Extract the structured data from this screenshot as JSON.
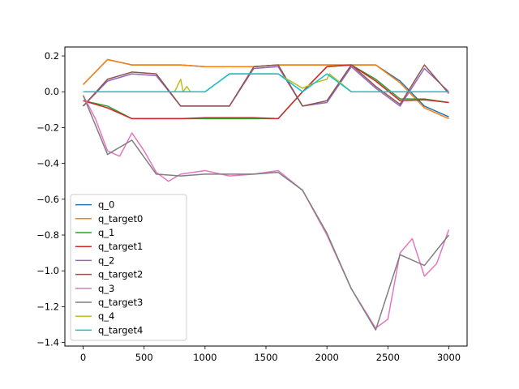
{
  "chart_data": {
    "type": "line",
    "title": "",
    "xlabel": "",
    "ylabel": "",
    "xlim": [
      -150,
      3150
    ],
    "ylim": [
      -1.42,
      0.25
    ],
    "grid": false,
    "legend_position": "lower-left",
    "x_ticks": [
      0,
      500,
      1000,
      1500,
      2000,
      2500,
      3000
    ],
    "x_tick_labels": [
      "0",
      "500",
      "1000",
      "1500",
      "2000",
      "2500",
      "3000"
    ],
    "y_ticks": [
      0.2,
      0.0,
      -0.2,
      -0.4,
      -0.6,
      -0.8,
      -1.0,
      -1.2,
      -1.4
    ],
    "y_tick_labels": [
      "0.2",
      "0.0",
      "−0.2",
      "−0.4",
      "−0.6",
      "−0.8",
      "−1.0",
      "−1.2",
      "−1.4"
    ],
    "series": [
      {
        "name": "q_0",
        "color": "#1f77b4",
        "x": [
          0,
          200,
          400,
          600,
          800,
          1000,
          1200,
          1400,
          1600,
          1800,
          2000,
          2200,
          2400,
          2600,
          2800,
          3000
        ],
        "y": [
          0.04,
          0.18,
          0.15,
          0.15,
          0.15,
          0.14,
          0.14,
          0.14,
          0.15,
          0.15,
          0.15,
          0.15,
          0.15,
          0.06,
          -0.08,
          -0.14
        ]
      },
      {
        "name": "q_target0",
        "color": "#ff7f0e",
        "x": [
          0,
          200,
          400,
          600,
          800,
          1000,
          1200,
          1400,
          1600,
          1800,
          2000,
          2200,
          2400,
          2600,
          2800,
          3000
        ],
        "y": [
          0.04,
          0.18,
          0.15,
          0.15,
          0.15,
          0.14,
          0.14,
          0.14,
          0.15,
          0.15,
          0.15,
          0.15,
          0.15,
          0.05,
          -0.09,
          -0.15
        ]
      },
      {
        "name": "q_1",
        "color": "#2ca02c",
        "x": [
          0,
          200,
          400,
          600,
          800,
          1000,
          1200,
          1400,
          1600,
          1800,
          2000,
          2200,
          2400,
          2600,
          2800,
          3000
        ],
        "y": [
          -0.05,
          -0.08,
          -0.15,
          -0.15,
          -0.15,
          -0.15,
          -0.15,
          -0.15,
          -0.15,
          0.0,
          0.14,
          0.15,
          0.07,
          -0.04,
          -0.04,
          -0.06
        ]
      },
      {
        "name": "q_target1",
        "color": "#d62728",
        "x": [
          0,
          200,
          400,
          600,
          800,
          1000,
          1200,
          1400,
          1600,
          1800,
          2000,
          2200,
          2400,
          2600,
          2800,
          3000
        ],
        "y": [
          -0.05,
          -0.09,
          -0.15,
          -0.15,
          -0.15,
          -0.145,
          -0.145,
          -0.145,
          -0.15,
          0.0,
          0.14,
          0.15,
          0.06,
          -0.05,
          -0.045,
          -0.06
        ]
      },
      {
        "name": "q_2",
        "color": "#9467bd",
        "x": [
          0,
          200,
          400,
          600,
          800,
          1000,
          1200,
          1400,
          1600,
          1800,
          2000,
          2200,
          2400,
          2600,
          2800,
          3000
        ],
        "y": [
          -0.08,
          0.06,
          0.1,
          0.09,
          -0.08,
          -0.08,
          -0.08,
          0.13,
          0.14,
          -0.08,
          -0.06,
          0.14,
          0.02,
          -0.08,
          0.13,
          0.0
        ]
      },
      {
        "name": "q_target2",
        "color": "#8c564b",
        "x": [
          0,
          200,
          400,
          600,
          800,
          1000,
          1200,
          1400,
          1600,
          1800,
          2000,
          2200,
          2400,
          2600,
          2800,
          3000
        ],
        "y": [
          -0.08,
          0.07,
          0.11,
          0.1,
          -0.08,
          -0.08,
          -0.08,
          0.14,
          0.15,
          -0.08,
          -0.05,
          0.15,
          0.03,
          -0.07,
          0.15,
          -0.01
        ]
      },
      {
        "name": "q_3",
        "color": "#e377c2",
        "x": [
          0,
          100,
          200,
          300,
          400,
          500,
          600,
          700,
          800,
          1000,
          1200,
          1400,
          1600,
          1800,
          2000,
          2200,
          2400,
          2500,
          2600,
          2700,
          2800,
          2900,
          3000
        ],
        "y": [
          -0.02,
          -0.15,
          -0.33,
          -0.36,
          -0.23,
          -0.33,
          -0.45,
          -0.5,
          -0.46,
          -0.44,
          -0.47,
          -0.46,
          -0.44,
          -0.55,
          -0.8,
          -1.1,
          -1.32,
          -1.27,
          -0.9,
          -0.82,
          -1.03,
          -0.96,
          -0.77
        ]
      },
      {
        "name": "q_target3",
        "color": "#7f7f7f",
        "x": [
          0,
          200,
          400,
          600,
          800,
          1000,
          1200,
          1400,
          1600,
          1800,
          2000,
          2200,
          2400,
          2600,
          2800,
          3000
        ],
        "y": [
          -0.02,
          -0.35,
          -0.27,
          -0.46,
          -0.47,
          -0.46,
          -0.46,
          -0.46,
          -0.45,
          -0.55,
          -0.79,
          -1.1,
          -1.33,
          -0.91,
          -0.97,
          -0.8
        ]
      },
      {
        "name": "q_4",
        "color": "#bcbd22",
        "x": [
          0,
          750,
          800,
          820,
          850,
          880,
          1000,
          1200,
          1400,
          1600,
          1800,
          1900,
          2000,
          2020,
          2200,
          3000
        ],
        "y": [
          0.0,
          0.0,
          0.07,
          0.0,
          0.03,
          0.0,
          0.0,
          0.1,
          0.1,
          0.1,
          0.02,
          0.05,
          0.07,
          0.1,
          0.0,
          0.0
        ]
      },
      {
        "name": "q_target4",
        "color": "#17becf",
        "x": [
          0,
          1000,
          1200,
          1400,
          1600,
          1800,
          2000,
          2200,
          3000
        ],
        "y": [
          0.0,
          0.0,
          0.1,
          0.1,
          0.1,
          0.0,
          0.1,
          0.0,
          0.0
        ]
      }
    ]
  }
}
